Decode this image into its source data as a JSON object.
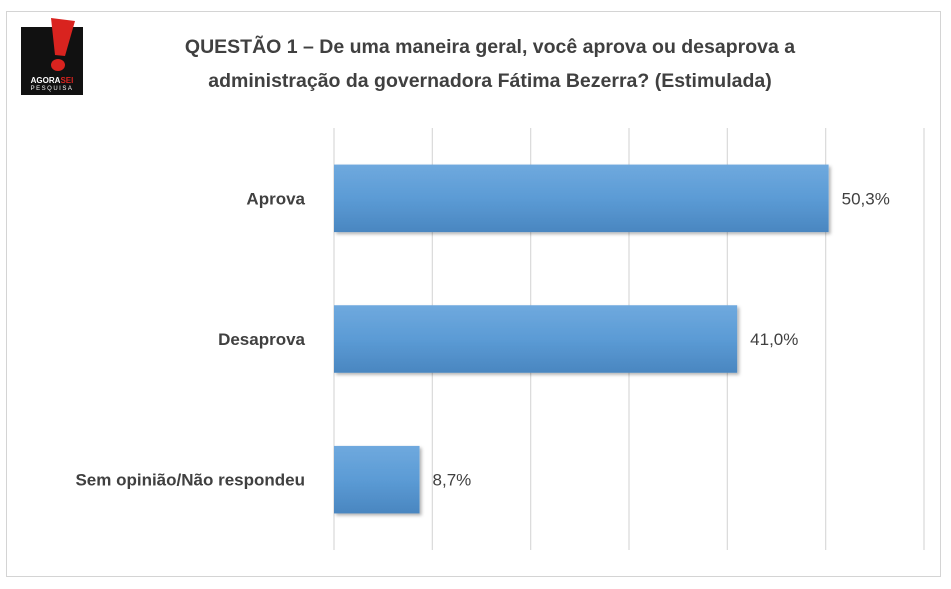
{
  "logo": {
    "brand_main": "AGORA",
    "brand_accent": "SEI",
    "brand_sub": "PESQUISA",
    "icon": "exclamation-icon",
    "accent_color": "#d9231f"
  },
  "chart_data": {
    "type": "bar",
    "orientation": "horizontal",
    "title_line1": "QUESTÃO 1 – De uma maneira geral, você aprova ou desaprova a",
    "title_line2": "administração da governadora Fátima Bezerra? (Estimulada)",
    "categories": [
      "Aprova",
      "Desaprova",
      "Sem opinião/Não respondeu"
    ],
    "values": [
      50.3,
      41.0,
      8.7
    ],
    "value_labels": [
      "50,3%",
      "41,0%",
      "8,7%"
    ],
    "unit": "%",
    "xlim": [
      0,
      60
    ],
    "grid": true,
    "legend": "none",
    "bar_color": "#5b9bd5"
  }
}
